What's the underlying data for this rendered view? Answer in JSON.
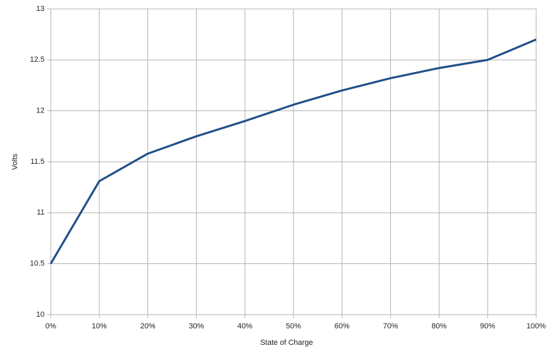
{
  "chart_data": {
    "type": "line",
    "x_label": "State of Charge",
    "y_label": "Volts",
    "categories": [
      "0%",
      "10%",
      "20%",
      "30%",
      "40%",
      "50%",
      "60%",
      "70%",
      "80%",
      "90%",
      "100%"
    ],
    "series": [
      {
        "color": "#1f4e87",
        "values": [
          10.5,
          11.31,
          11.58,
          11.75,
          11.9,
          12.06,
          12.2,
          12.32,
          12.42,
          12.5,
          12.7
        ]
      }
    ],
    "ylim": [
      10,
      13
    ],
    "yticks": [
      10,
      10.5,
      11,
      11.5,
      12,
      12.5,
      13
    ],
    "grid": true
  }
}
